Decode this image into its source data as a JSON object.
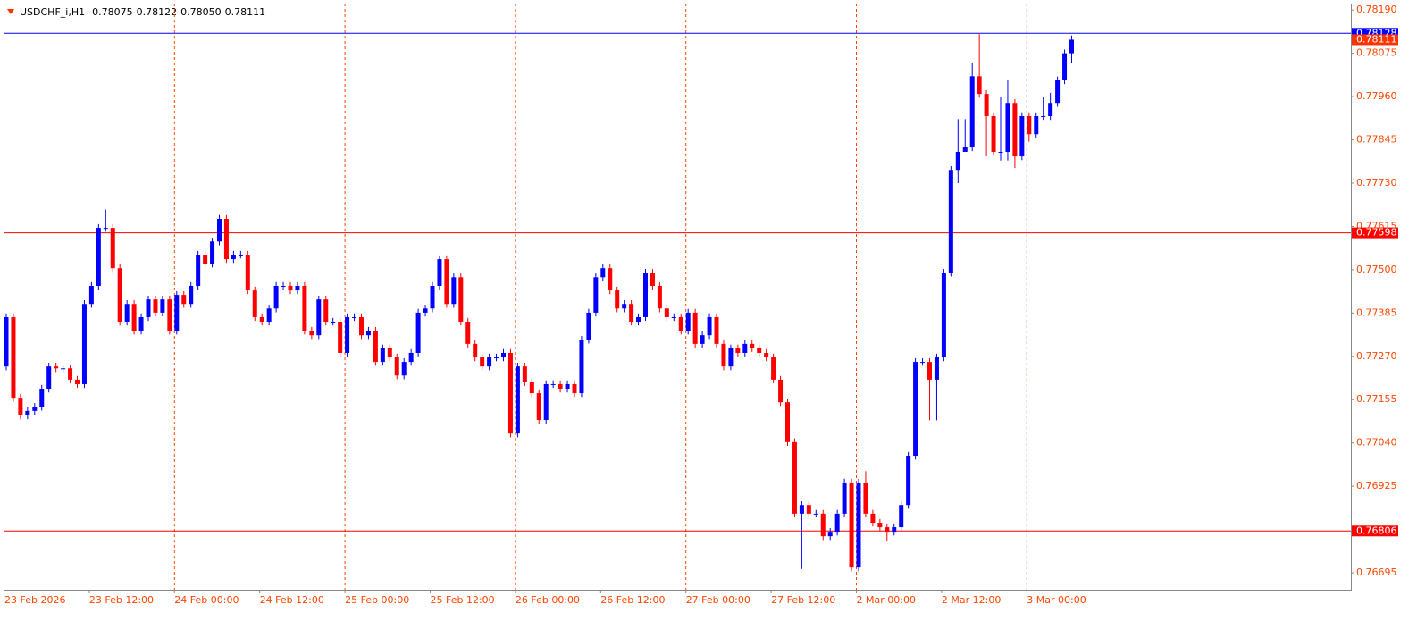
{
  "chart_data": {
    "type": "candlestick",
    "symbol": "USDCHF_i,H1",
    "header_values": [
      "0.78075",
      "0.78122",
      "0.78050",
      "0.78111"
    ],
    "up_color": "#0000ff",
    "down_color": "#ff0000",
    "grid_color": "#ff4500",
    "categories": [
      "23 Feb 2026",
      null,
      null,
      null,
      null,
      null,
      null,
      null,
      null,
      null,
      null,
      null,
      "23 Feb 12:00",
      null,
      null,
      null,
      null,
      null,
      null,
      null,
      null,
      null,
      null,
      null,
      "24 Feb 00:00",
      null,
      null,
      null,
      null,
      null,
      null,
      null,
      null,
      null,
      null,
      null,
      "24 Feb 12:00",
      null,
      null,
      null,
      null,
      null,
      null,
      null,
      null,
      null,
      null,
      null,
      "25 Feb 00:00",
      null,
      null,
      null,
      null,
      null,
      null,
      null,
      null,
      null,
      null,
      null,
      "25 Feb 12:00",
      null,
      null,
      null,
      null,
      null,
      null,
      null,
      null,
      null,
      null,
      null,
      "26 Feb 00:00",
      null,
      null,
      null,
      null,
      null,
      null,
      null,
      null,
      null,
      null,
      null,
      "26 Feb 12:00",
      null,
      null,
      null,
      null,
      null,
      null,
      null,
      null,
      null,
      null,
      null,
      "27 Feb 00:00",
      null,
      null,
      null,
      null,
      null,
      null,
      null,
      null,
      null,
      null,
      null,
      "27 Feb 12:00",
      null,
      null,
      null,
      null,
      null,
      null,
      null,
      null,
      null,
      null,
      null,
      "2 Mar 00:00",
      null,
      null,
      null,
      null,
      null,
      null,
      null,
      null,
      null,
      null,
      null,
      "2 Mar 12:00",
      null,
      null,
      null,
      null,
      null,
      null,
      null,
      null,
      null,
      null,
      null,
      "3 Mar 00:00",
      null,
      null,
      null,
      null,
      null,
      null
    ],
    "open": [
      0.77243,
      0.77374,
      0.7716,
      0.77113,
      0.77125,
      0.77136,
      0.77184,
      0.77243,
      0.77238,
      0.77238,
      0.77208,
      0.77196,
      0.77409,
      0.77457,
      0.77611,
      0.77611,
      0.77504,
      0.77362,
      0.77409,
      0.77338,
      0.77374,
      0.77421,
      0.77386,
      0.77421,
      0.77338,
      0.77433,
      0.77409,
      0.77457,
      0.7754,
      0.77516,
      0.77575,
      0.77635,
      0.77528,
      0.7754,
      0.7754,
      0.77445,
      0.77374,
      0.77362,
      0.77397,
      0.77457,
      0.77457,
      0.77445,
      0.77457,
      0.77338,
      0.77326,
      0.77421,
      0.77362,
      0.77362,
      0.77279,
      0.77374,
      0.77374,
      0.77326,
      0.77338,
      0.77255,
      0.77291,
      0.77267,
      0.77219,
      0.77255,
      0.77279,
      0.77386,
      0.77397,
      0.77457,
      0.77528,
      0.77409,
      0.7748,
      0.77362,
      0.77303,
      0.77267,
      0.77243,
      0.77267,
      0.77267,
      0.77279,
      0.77065,
      0.77243,
      0.77201,
      0.77172,
      0.77101,
      0.77196,
      0.77196,
      0.77184,
      0.77196,
      0.77172,
      0.77314,
      0.77386,
      0.7748,
      0.77504,
      0.77445,
      0.77397,
      0.77409,
      0.77362,
      0.77374,
      0.77492,
      0.77457,
      0.77397,
      0.77374,
      0.77374,
      0.77338,
      0.77386,
      0.77303,
      0.77326,
      0.77374,
      0.77303,
      0.77243,
      0.77291,
      0.77279,
      0.77303,
      0.77291,
      0.77279,
      0.77267,
      0.77208,
      0.77148,
      0.77042,
      0.76852,
      0.76875,
      0.76852,
      0.76852,
      0.76792,
      0.76804,
      0.76852,
      0.76935,
      0.76709,
      0.76935,
      0.76852,
      0.76828,
      0.76816,
      0.76804,
      0.76816,
      0.76875,
      0.77006,
      0.77255,
      0.77255,
      0.77208,
      0.77267,
      0.77492,
      0.77765,
      0.77813,
      0.77825,
      0.78014,
      0.77967,
      0.77908,
      0.77813,
      0.77813,
      0.77943,
      0.77801,
      0.77908,
      0.7786,
      0.77908,
      0.77908,
      0.77943,
      0.78003,
      0.78075
    ],
    "high": [
      0.77384,
      0.77384,
      0.7717,
      0.77135,
      0.77146,
      0.77194,
      0.77253,
      0.77253,
      0.77248,
      0.77248,
      0.77218,
      0.77419,
      0.77467,
      0.77621,
      0.7766,
      0.77621,
      0.77514,
      0.77419,
      0.77419,
      0.77384,
      0.77431,
      0.77431,
      0.77431,
      0.77431,
      0.77443,
      0.77443,
      0.77467,
      0.7755,
      0.7755,
      0.77585,
      0.77645,
      0.77645,
      0.7755,
      0.7755,
      0.7755,
      0.77455,
      0.77384,
      0.77407,
      0.77467,
      0.77467,
      0.77467,
      0.77467,
      0.77467,
      0.77348,
      0.77431,
      0.77431,
      0.77372,
      0.77372,
      0.77384,
      0.77384,
      0.77384,
      0.77348,
      0.77348,
      0.77301,
      0.77301,
      0.77277,
      0.77265,
      0.77289,
      0.77396,
      0.77407,
      0.77467,
      0.77538,
      0.77538,
      0.7749,
      0.7749,
      0.77372,
      0.77313,
      0.77277,
      0.77277,
      0.77277,
      0.77289,
      0.77289,
      0.77253,
      0.77253,
      0.77211,
      0.77182,
      0.77206,
      0.77206,
      0.77206,
      0.77206,
      0.77206,
      0.77324,
      0.77396,
      0.7749,
      0.77514,
      0.77514,
      0.77455,
      0.77419,
      0.77419,
      0.77384,
      0.77502,
      0.77502,
      0.77467,
      0.77407,
      0.77384,
      0.77384,
      0.77396,
      0.77396,
      0.77336,
      0.77384,
      0.77384,
      0.77313,
      0.77301,
      0.77301,
      0.77313,
      0.77313,
      0.77301,
      0.77289,
      0.77277,
      0.77218,
      0.77158,
      0.77052,
      0.76885,
      0.76885,
      0.76862,
      0.76862,
      0.76814,
      0.76862,
      0.76945,
      0.76945,
      0.76945,
      0.76965,
      0.76862,
      0.76838,
      0.76826,
      0.76826,
      0.76885,
      0.77016,
      0.77265,
      0.77265,
      0.77265,
      0.77277,
      0.77502,
      0.77775,
      0.779,
      0.779,
      0.7805,
      0.78126,
      0.77977,
      0.77918,
      0.7796,
      0.78003,
      0.77953,
      0.77918,
      0.77918,
      0.77918,
      0.7796,
      0.7797,
      0.78013,
      0.78085,
      0.78122
    ],
    "low": [
      0.77233,
      0.7715,
      0.77103,
      0.77103,
      0.77115,
      0.77126,
      0.77174,
      0.77228,
      0.77228,
      0.77198,
      0.77186,
      0.77186,
      0.77399,
      0.77447,
      0.77601,
      0.77494,
      0.77352,
      0.77352,
      0.77328,
      0.77328,
      0.77364,
      0.77376,
      0.77376,
      0.77328,
      0.77328,
      0.77399,
      0.77399,
      0.77447,
      0.77506,
      0.77506,
      0.77565,
      0.77518,
      0.77518,
      0.7753,
      0.77435,
      0.77364,
      0.77352,
      0.77352,
      0.77387,
      0.77447,
      0.77435,
      0.77435,
      0.77328,
      0.77316,
      0.77316,
      0.77352,
      0.77352,
      0.77269,
      0.77269,
      0.77364,
      0.77316,
      0.77316,
      0.77245,
      0.77245,
      0.77257,
      0.77209,
      0.77209,
      0.77245,
      0.77269,
      0.77376,
      0.77387,
      0.77447,
      0.77399,
      0.77399,
      0.77352,
      0.77293,
      0.77257,
      0.77233,
      0.77233,
      0.77257,
      0.77257,
      0.77055,
      0.77055,
      0.77191,
      0.77162,
      0.77091,
      0.77091,
      0.77186,
      0.77174,
      0.77174,
      0.77162,
      0.77162,
      0.77304,
      0.77376,
      0.7747,
      0.77435,
      0.77387,
      0.77387,
      0.77352,
      0.77352,
      0.77364,
      0.77447,
      0.77387,
      0.77364,
      0.77364,
      0.77328,
      0.77328,
      0.77293,
      0.77293,
      0.77316,
      0.77293,
      0.77233,
      0.77233,
      0.77269,
      0.77269,
      0.77281,
      0.77269,
      0.77257,
      0.77198,
      0.77138,
      0.77032,
      0.76842,
      0.76705,
      0.76842,
      0.76842,
      0.76782,
      0.76782,
      0.76794,
      0.76842,
      0.76699,
      0.76699,
      0.76842,
      0.76818,
      0.76806,
      0.7678,
      0.76794,
      0.76806,
      0.76865,
      0.76996,
      0.77245,
      0.771,
      0.771,
      0.77257,
      0.77482,
      0.7773,
      0.77815,
      0.77815,
      0.77957,
      0.77801,
      0.77803,
      0.7779,
      0.7779,
      0.7777,
      0.77791,
      0.7784,
      0.7785,
      0.77898,
      0.77898,
      0.77933,
      0.77993,
      0.7805
    ],
    "close": [
      0.77374,
      0.7716,
      0.77113,
      0.77125,
      0.77136,
      0.77184,
      0.77243,
      0.77238,
      0.77238,
      0.77208,
      0.77196,
      0.77409,
      0.77457,
      0.77611,
      0.77611,
      0.77504,
      0.77362,
      0.77409,
      0.77338,
      0.77374,
      0.77421,
      0.77386,
      0.77421,
      0.77338,
      0.77433,
      0.77409,
      0.77457,
      0.7754,
      0.77516,
      0.77575,
      0.77635,
      0.77528,
      0.7754,
      0.7754,
      0.77445,
      0.77374,
      0.77362,
      0.77397,
      0.77457,
      0.77457,
      0.77445,
      0.77457,
      0.77338,
      0.77326,
      0.77421,
      0.77362,
      0.77362,
      0.77279,
      0.77374,
      0.77374,
      0.77326,
      0.77338,
      0.77255,
      0.77291,
      0.77267,
      0.77219,
      0.77255,
      0.77279,
      0.77386,
      0.77397,
      0.77457,
      0.77528,
      0.77409,
      0.7748,
      0.77362,
      0.77303,
      0.77267,
      0.77243,
      0.77267,
      0.77267,
      0.77279,
      0.77065,
      0.77243,
      0.77201,
      0.77172,
      0.77101,
      0.77196,
      0.77196,
      0.77184,
      0.77196,
      0.77172,
      0.77314,
      0.77386,
      0.7748,
      0.77504,
      0.77445,
      0.77397,
      0.77409,
      0.77362,
      0.77374,
      0.77492,
      0.77457,
      0.77397,
      0.77374,
      0.77374,
      0.77338,
      0.77386,
      0.77303,
      0.77326,
      0.77374,
      0.77303,
      0.77243,
      0.77291,
      0.77279,
      0.77303,
      0.77291,
      0.77279,
      0.77267,
      0.77208,
      0.77148,
      0.77042,
      0.76852,
      0.76875,
      0.76852,
      0.76852,
      0.76792,
      0.76804,
      0.76852,
      0.76935,
      0.76709,
      0.76935,
      0.76852,
      0.76828,
      0.76816,
      0.76804,
      0.76816,
      0.76875,
      0.77006,
      0.77255,
      0.77255,
      0.77208,
      0.77267,
      0.77492,
      0.77765,
      0.77813,
      0.77825,
      0.78014,
      0.77967,
      0.77908,
      0.77813,
      0.77813,
      0.77943,
      0.77801,
      0.77908,
      0.7786,
      0.77908,
      0.77908,
      0.77943,
      0.78003,
      0.78075,
      0.78111
    ],
    "ylim": [
      0.7665,
      0.78207
    ],
    "yticks": [
      {
        "value": 0.7819,
        "label": "0.78190"
      },
      {
        "value": 0.78075,
        "label": "0.78075"
      },
      {
        "value": 0.7796,
        "label": "0.77960"
      },
      {
        "value": 0.77845,
        "label": "0.77845"
      },
      {
        "value": 0.7773,
        "label": "0.77730"
      },
      {
        "value": 0.77615,
        "label": "0.77615"
      },
      {
        "value": 0.775,
        "label": "0.77500"
      },
      {
        "value": 0.77385,
        "label": "0.77385"
      },
      {
        "value": 0.7727,
        "label": "0.77270"
      },
      {
        "value": 0.77155,
        "label": "0.77155"
      },
      {
        "value": 0.7704,
        "label": "0.77040"
      },
      {
        "value": 0.76925,
        "label": "0.76925"
      },
      {
        "value": 0.76695,
        "label": "0.76695"
      }
    ],
    "levels": [
      {
        "value": 0.78128,
        "label": "0.78128",
        "color": "#0000ff",
        "line": true
      },
      {
        "value": 0.78111,
        "label": "0.78111",
        "color": "#ff3300",
        "line": false
      },
      {
        "value": 0.77598,
        "label": "0.77598",
        "color": "#ff0000",
        "line": true
      },
      {
        "value": 0.76806,
        "label": "0.76806",
        "color": "#ff0000",
        "line": true
      }
    ]
  }
}
